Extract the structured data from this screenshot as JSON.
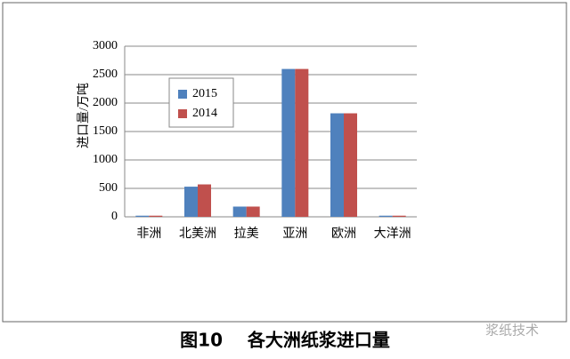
{
  "chart_data": {
    "type": "bar",
    "title": "图10    各大洲纸浆进口量",
    "y_label": "进口量/万吨",
    "categories": [
      "非洲",
      "北美洲",
      "拉美",
      "亚洲",
      "欧洲",
      "大洋洲"
    ],
    "series": [
      {
        "name": "2015",
        "color": "#4f81bd",
        "values": [
          20,
          530,
          180,
          2600,
          1820,
          20
        ]
      },
      {
        "name": "2014",
        "color": "#c0504d",
        "values": [
          20,
          570,
          180,
          2600,
          1820,
          20
        ]
      }
    ],
    "ylim": [
      0,
      3000
    ],
    "yticks": [
      0,
      500,
      1000,
      1500,
      2000,
      2500,
      3000
    ],
    "grid": true,
    "watermark": "浆纸技术"
  }
}
